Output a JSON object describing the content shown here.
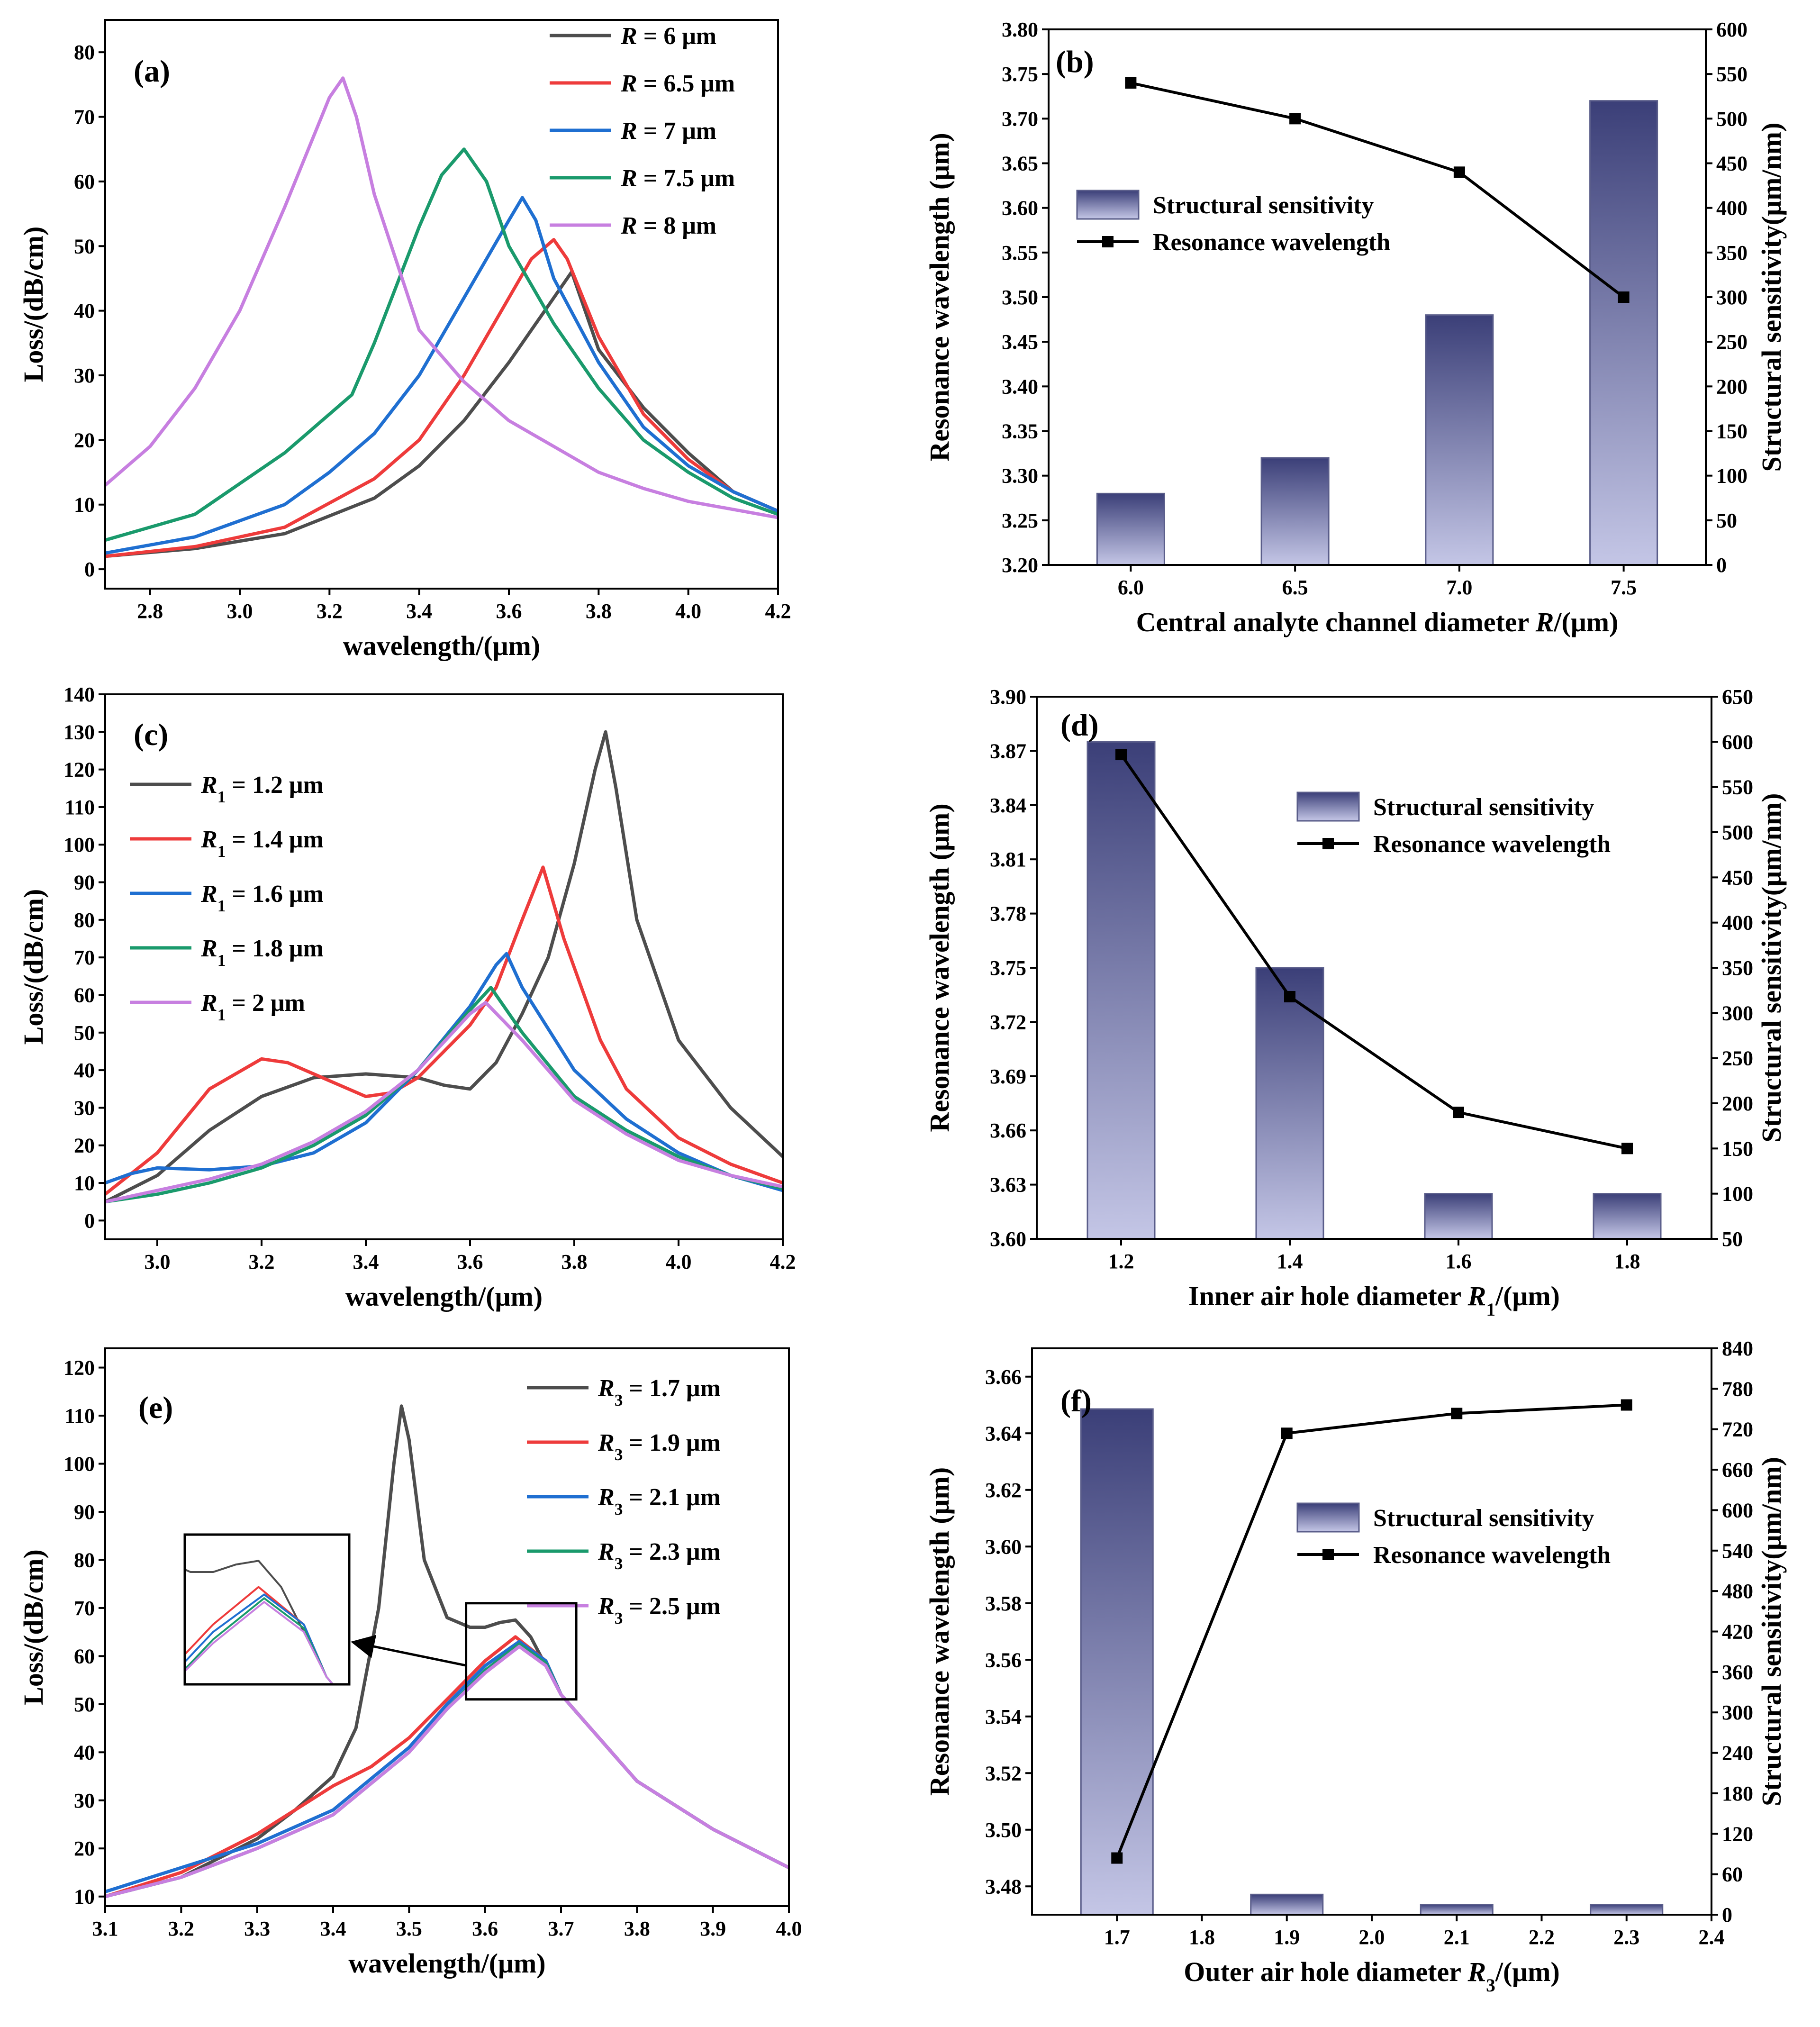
{
  "chart_data": [
    {
      "panel": "(a)",
      "type": "line",
      "xlabel": "wavelength/(μm)",
      "ylabel": "Loss/(dB/cm)",
      "xlim": [
        2.7,
        4.2
      ],
      "ylim": [
        -3,
        85
      ],
      "xticks": [
        2.8,
        3.0,
        3.2,
        3.4,
        3.6,
        3.8,
        4.0,
        4.2
      ],
      "yticks": [
        0,
        10,
        20,
        30,
        40,
        50,
        60,
        70,
        80
      ],
      "legend_position": "top-right",
      "series": [
        {
          "var": "R",
          "sub": "",
          "rest": " = 6 μm",
          "color": "#4d4d4d",
          "x": [
            2.7,
            2.9,
            3.1,
            3.3,
            3.4,
            3.5,
            3.6,
            3.65,
            3.7,
            3.74,
            3.77,
            3.8,
            3.9,
            4.0,
            4.1,
            4.2
          ],
          "y": [
            2.0,
            3.2,
            5.5,
            11,
            16,
            23,
            32,
            37,
            42,
            46,
            40,
            34,
            25,
            18,
            12,
            9
          ]
        },
        {
          "var": "R",
          "sub": "",
          "rest": " = 6.5 μm",
          "color": "#ee3b3b",
          "x": [
            2.7,
            2.9,
            3.1,
            3.3,
            3.4,
            3.5,
            3.6,
            3.65,
            3.7,
            3.73,
            3.8,
            3.9,
            4.0,
            4.1,
            4.2
          ],
          "y": [
            2.0,
            3.5,
            6.5,
            14,
            20,
            30,
            42,
            48,
            51,
            48,
            36,
            24,
            17,
            12,
            9
          ]
        },
        {
          "var": "R",
          "sub": "",
          "rest": " = 7 μm",
          "color": "#1f6fd1",
          "x": [
            2.7,
            2.9,
            3.1,
            3.2,
            3.3,
            3.4,
            3.5,
            3.6,
            3.63,
            3.66,
            3.7,
            3.8,
            3.9,
            4.0,
            4.1,
            4.2
          ],
          "y": [
            2.5,
            5,
            10,
            15,
            21,
            30,
            42,
            54,
            57.5,
            54,
            45,
            32,
            22,
            16,
            12,
            9
          ]
        },
        {
          "var": "R",
          "sub": "",
          "rest": " = 7.5 μm",
          "color": "#1a9a6c",
          "x": [
            2.7,
            2.9,
            3.1,
            3.25,
            3.3,
            3.4,
            3.45,
            3.5,
            3.55,
            3.6,
            3.7,
            3.8,
            3.9,
            4.0,
            4.1,
            4.2
          ],
          "y": [
            4.5,
            8.5,
            18,
            27,
            35,
            53,
            61,
            65,
            60,
            50,
            38,
            28,
            20,
            15,
            11,
            8.5
          ]
        },
        {
          "var": "R",
          "sub": "",
          "rest": " = 8 μm",
          "color": "#c77fe0",
          "x": [
            2.7,
            2.8,
            2.9,
            3.0,
            3.1,
            3.2,
            3.23,
            3.26,
            3.3,
            3.4,
            3.5,
            3.6,
            3.7,
            3.8,
            3.9,
            4.0,
            4.2
          ],
          "y": [
            13,
            19,
            28,
            40,
            56,
            73,
            76,
            70,
            58,
            37,
            29,
            23,
            19,
            15,
            12.5,
            10.5,
            8
          ]
        }
      ]
    },
    {
      "panel": "(b)",
      "type": "bar+line",
      "xlabel": "Central analyte channel diameter ",
      "xlabel_var": "R",
      "xlabel_tail": "/(μm)",
      "ylabel_left": "Resonance wavelength (μm)",
      "ylabel_right": "Structural sensitivity(μm/nm)",
      "categories": [
        6.0,
        6.5,
        7.0,
        7.5
      ],
      "category_labels": [
        "6.0",
        "6.5",
        "7.0",
        "7.5"
      ],
      "x_axis_range": [
        5.75,
        7.75
      ],
      "bar_name": "Structural sensitivity",
      "bar_values": [
        80,
        120,
        280,
        520
      ],
      "line_name": "Resonance wavelength",
      "line_values": [
        3.74,
        3.7,
        3.64,
        3.5
      ],
      "ylim_left": [
        3.2,
        3.8
      ],
      "ylim_right": [
        0,
        600
      ],
      "yticks_left": [
        "3.20",
        "3.25",
        "3.30",
        "3.35",
        "3.40",
        "3.45",
        "3.50",
        "3.55",
        "3.60",
        "3.65",
        "3.70",
        "3.75",
        "3.80"
      ],
      "yticks_right": [
        0,
        50,
        100,
        150,
        200,
        250,
        300,
        350,
        400,
        450,
        500,
        550,
        600
      ],
      "legend_position": "upper-left"
    },
    {
      "panel": "(c)",
      "type": "line",
      "xlabel": "wavelength/(μm)",
      "ylabel": "Loss/(dB/cm)",
      "xlim": [
        2.9,
        4.2
      ],
      "ylim": [
        -5,
        140
      ],
      "xticks": [
        3.0,
        3.2,
        3.4,
        3.6,
        3.8,
        4.0,
        4.2
      ],
      "yticks": [
        0,
        10,
        20,
        30,
        40,
        50,
        60,
        70,
        80,
        90,
        100,
        110,
        120,
        130,
        140
      ],
      "legend_position": "upper-left",
      "series": [
        {
          "var": "R",
          "sub": "1",
          "rest": " = 1.2 μm",
          "color": "#4d4d4d",
          "x": [
            2.9,
            3.0,
            3.1,
            3.2,
            3.3,
            3.4,
            3.5,
            3.55,
            3.6,
            3.65,
            3.7,
            3.75,
            3.8,
            3.84,
            3.86,
            3.88,
            3.92,
            4.0,
            4.1,
            4.2
          ],
          "y": [
            5,
            12,
            24,
            33,
            38,
            39,
            38,
            36,
            35,
            42,
            55,
            70,
            95,
            120,
            130,
            115,
            80,
            48,
            30,
            17
          ]
        },
        {
          "var": "R",
          "sub": "1",
          "rest": " = 1.4 μm",
          "color": "#ee3b3b",
          "x": [
            2.9,
            3.0,
            3.1,
            3.2,
            3.25,
            3.3,
            3.4,
            3.45,
            3.5,
            3.6,
            3.65,
            3.7,
            3.74,
            3.78,
            3.85,
            3.9,
            4.0,
            4.1,
            4.2
          ],
          "y": [
            7,
            18,
            35,
            43,
            42,
            39,
            33,
            34,
            38,
            52,
            62,
            80,
            94,
            75,
            48,
            35,
            22,
            15,
            10
          ]
        },
        {
          "var": "R",
          "sub": "1",
          "rest": " = 1.6 μm",
          "color": "#1f6fd1",
          "x": [
            2.9,
            2.95,
            3.0,
            3.1,
            3.2,
            3.3,
            3.4,
            3.5,
            3.6,
            3.65,
            3.67,
            3.7,
            3.8,
            3.9,
            4.0,
            4.1,
            4.2
          ],
          "y": [
            10,
            12.5,
            14,
            13.5,
            14.5,
            18,
            26,
            40,
            57,
            68,
            71,
            62,
            40,
            27,
            18,
            12,
            8
          ]
        },
        {
          "var": "R",
          "sub": "1",
          "rest": " = 1.8 μm",
          "color": "#1a9a6c",
          "x": [
            2.9,
            3.0,
            3.1,
            3.2,
            3.3,
            3.4,
            3.5,
            3.6,
            3.64,
            3.7,
            3.8,
            3.9,
            4.0,
            4.1,
            4.2
          ],
          "y": [
            5,
            7,
            10,
            14,
            20,
            28,
            40,
            56,
            62,
            50,
            33,
            24,
            17,
            12,
            8.5
          ]
        },
        {
          "var": "R",
          "sub": "1",
          "rest": " = 2 μm",
          "color": "#c77fe0",
          "x": [
            2.9,
            3.0,
            3.1,
            3.2,
            3.3,
            3.4,
            3.5,
            3.6,
            3.63,
            3.7,
            3.8,
            3.9,
            4.0,
            4.1,
            4.2
          ],
          "y": [
            5,
            8,
            11,
            15,
            21,
            29,
            40,
            55,
            58,
            48,
            32,
            23,
            16,
            12,
            9
          ]
        }
      ]
    },
    {
      "panel": "(d)",
      "type": "bar+line",
      "xlabel": "Inner air hole diameter ",
      "xlabel_var": "R",
      "xlabel_sub": "1",
      "xlabel_tail": "/(μm)",
      "ylabel_left": "Resonance wavelength (μm)",
      "ylabel_right": "Structural sensitivity(μm/nm)",
      "categories": [
        1.2,
        1.4,
        1.6,
        1.8
      ],
      "category_labels": [
        "1.2",
        "1.4",
        "1.6",
        "1.8"
      ],
      "x_axis_range": [
        1.1,
        1.9
      ],
      "bar_name": "Structural sensitivity",
      "bar_values": [
        600,
        350,
        100,
        100
      ],
      "line_name": "Resonance wavelength",
      "line_values": [
        3.868,
        3.734,
        3.67,
        3.65
      ],
      "ylim_left": [
        3.6,
        3.9
      ],
      "ylim_right": [
        50,
        650
      ],
      "yticks_left": [
        "3.60",
        "3.63",
        "3.66",
        "3.69",
        "3.72",
        "3.75",
        "3.78",
        "3.81",
        "3.84",
        "3.87",
        "3.90"
      ],
      "yticks_right": [
        50,
        100,
        150,
        200,
        250,
        300,
        350,
        400,
        450,
        500,
        550,
        600,
        650
      ],
      "legend_position": "upper-right"
    },
    {
      "panel": "(e)",
      "type": "line",
      "xlabel": "wavelength/(μm)",
      "ylabel": "Loss/(dB/cm)",
      "xlim": [
        3.1,
        4.0
      ],
      "ylim": [
        8,
        124
      ],
      "xticks": [
        3.1,
        3.2,
        3.3,
        3.4,
        3.5,
        3.6,
        3.7,
        3.8,
        3.9,
        4.0
      ],
      "yticks": [
        10,
        20,
        30,
        40,
        50,
        60,
        70,
        80,
        90,
        100,
        110,
        120
      ],
      "legend_position": "top-right",
      "inset": {
        "zoom_box_x": [
          3.575,
          3.72
        ],
        "zoom_box_y": [
          51,
          71
        ],
        "arrow": "points left from zoom box to inset"
      },
      "series": [
        {
          "var": "R",
          "sub": "3",
          "rest": " = 1.7 μm",
          "color": "#4d4d4d",
          "x": [
            3.1,
            3.2,
            3.3,
            3.35,
            3.4,
            3.43,
            3.46,
            3.48,
            3.49,
            3.5,
            3.52,
            3.55,
            3.58,
            3.6,
            3.62,
            3.64,
            3.66,
            3.7,
            3.8,
            3.9,
            4.0
          ],
          "y": [
            10,
            14,
            22,
            28,
            35,
            45,
            70,
            100,
            112,
            105,
            80,
            68,
            66,
            66,
            67,
            67.5,
            64,
            52,
            34,
            24,
            16
          ]
        },
        {
          "var": "R",
          "sub": "3",
          "rest": " = 1.9 μm",
          "color": "#ee3b3b",
          "x": [
            3.1,
            3.2,
            3.3,
            3.4,
            3.45,
            3.5,
            3.55,
            3.6,
            3.64,
            3.68,
            3.7,
            3.8,
            3.9,
            4.0
          ],
          "y": [
            10,
            15,
            23,
            33,
            37,
            43,
            51,
            59,
            64,
            59,
            52,
            34,
            24,
            16
          ]
        },
        {
          "var": "R",
          "sub": "3",
          "rest": " = 2.1 μm",
          "color": "#1f6fd1",
          "x": [
            3.1,
            3.2,
            3.3,
            3.4,
            3.5,
            3.55,
            3.6,
            3.645,
            3.68,
            3.7,
            3.8,
            3.9,
            4.0
          ],
          "y": [
            11,
            16,
            21,
            28,
            41,
            50,
            58,
            63,
            59,
            52,
            34,
            24,
            16
          ]
        },
        {
          "var": "R",
          "sub": "3",
          "rest": " = 2.3 μm",
          "color": "#1a9a6c",
          "x": [
            3.1,
            3.2,
            3.3,
            3.4,
            3.5,
            3.55,
            3.6,
            3.645,
            3.68,
            3.7,
            3.8,
            3.9,
            4.0
          ],
          "y": [
            10,
            14,
            20,
            27,
            40,
            49,
            57,
            62.5,
            58.5,
            52,
            34,
            24,
            16
          ]
        },
        {
          "var": "R",
          "sub": "3",
          "rest": " = 2.5 μm",
          "color": "#c77fe0",
          "x": [
            3.1,
            3.2,
            3.3,
            3.4,
            3.5,
            3.55,
            3.6,
            3.645,
            3.68,
            3.7,
            3.8,
            3.9,
            4.0
          ],
          "y": [
            10,
            14,
            20,
            27,
            40,
            49,
            56.5,
            62,
            58,
            52,
            34,
            24,
            16
          ]
        }
      ]
    },
    {
      "panel": "(f)",
      "type": "bar+line",
      "xlabel": "Outer air hole diameter ",
      "xlabel_var": "R",
      "xlabel_sub": "3",
      "xlabel_tail": "/(μm)",
      "ylabel_left": "Resonance wavelength (μm)",
      "ylabel_right": "Structural sensitivity(μm/nm)",
      "categories": [
        1.7,
        1.9,
        2.1,
        2.3
      ],
      "category_labels": [
        "1.7",
        "1.9",
        "2.1",
        "2.3"
      ],
      "x_axis_range": [
        1.6,
        2.4
      ],
      "x_ticks": [
        "1.7",
        "1.8",
        "1.9",
        "2.0",
        "2.1",
        "2.2",
        "2.3",
        "2.4"
      ],
      "bar_name": "Structural sensitivity",
      "bar_values": [
        750,
        30,
        15,
        15
      ],
      "line_name": "Resonance wavelength",
      "line_values": [
        3.49,
        3.64,
        3.647,
        3.65
      ],
      "ylim_left": [
        3.47,
        3.67
      ],
      "ylim_right": [
        0,
        840
      ],
      "yticks_left": [
        "3.48",
        "3.50",
        "3.52",
        "3.54",
        "3.56",
        "3.58",
        "3.60",
        "3.62",
        "3.64",
        "3.66"
      ],
      "yticks_right": [
        0,
        60,
        120,
        180,
        240,
        300,
        360,
        420,
        480,
        540,
        600,
        660,
        720,
        780,
        840
      ],
      "legend_position": "upper-right"
    }
  ]
}
